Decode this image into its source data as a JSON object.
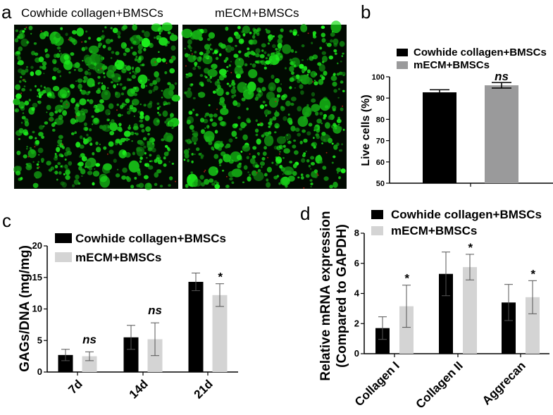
{
  "panel_a": {
    "label": "a",
    "images": [
      {
        "title": "Cowhide collagen+BMSCs"
      },
      {
        "title": "mECM+BMSCs"
      }
    ]
  },
  "colors": {
    "black_bar": "#000000",
    "grey_bar_b": "#9a9a9b",
    "grey_bar_cd": "#d4d4d4",
    "fluorescence": "#22ee22"
  },
  "chart_data": [
    {
      "panel": "b",
      "type": "bar",
      "ylabel": "Live cells (%)",
      "ylim": [
        50,
        100
      ],
      "yticks": [
        50,
        60,
        70,
        80,
        90,
        100
      ],
      "categories": [
        ""
      ],
      "series": [
        {
          "name": "Cowhide collagen+BMSCs",
          "values": [
            92.7
          ],
          "errors": [
            1.2
          ]
        },
        {
          "name": "mECM+BMSCs",
          "values": [
            96.0
          ],
          "errors": [
            1.3
          ]
        }
      ],
      "annotations": [
        {
          "series": 1,
          "category": 0,
          "text": "ns"
        }
      ],
      "legend": "top"
    },
    {
      "panel": "c",
      "type": "bar",
      "ylabel": "GAGs/DNA (mg/mg)",
      "ylim": [
        0,
        20
      ],
      "yticks": [
        0,
        5,
        10,
        15,
        20
      ],
      "categories": [
        "7d",
        "14d",
        "21d"
      ],
      "series": [
        {
          "name": "Cowhide collagen+BMSCs",
          "values": [
            2.7,
            5.5,
            14.3
          ],
          "errors": [
            0.9,
            1.9,
            1.4
          ]
        },
        {
          "name": "mECM+BMSCs",
          "values": [
            2.5,
            5.2,
            12.2
          ],
          "errors": [
            0.7,
            2.6,
            1.8
          ]
        }
      ],
      "annotations": [
        {
          "series": 1,
          "category": 0,
          "text": "ns"
        },
        {
          "series": 1,
          "category": 1,
          "text": "ns"
        },
        {
          "series": 1,
          "category": 2,
          "text": "*"
        }
      ],
      "legend": "top-left"
    },
    {
      "panel": "d",
      "type": "bar",
      "ylabel": [
        "Relative mRNA expression",
        "(Compared to GAPDH)"
      ],
      "ylim": [
        0,
        8
      ],
      "yticks": [
        0,
        2,
        4,
        6,
        8
      ],
      "categories": [
        "Collagen I",
        "Collagen II",
        "Aggrecan"
      ],
      "series": [
        {
          "name": "Cowhide collagen+BMSCs",
          "values": [
            1.7,
            5.3,
            3.4
          ],
          "errors": [
            0.75,
            1.45,
            1.2
          ]
        },
        {
          "name": "mECM+BMSCs",
          "values": [
            3.15,
            5.75,
            3.75
          ],
          "errors": [
            1.4,
            0.85,
            1.1
          ]
        }
      ],
      "annotations": [
        {
          "series": 1,
          "category": 0,
          "text": "*"
        },
        {
          "series": 1,
          "category": 1,
          "text": "*"
        },
        {
          "series": 1,
          "category": 2,
          "text": "*"
        }
      ],
      "legend": "top"
    }
  ]
}
